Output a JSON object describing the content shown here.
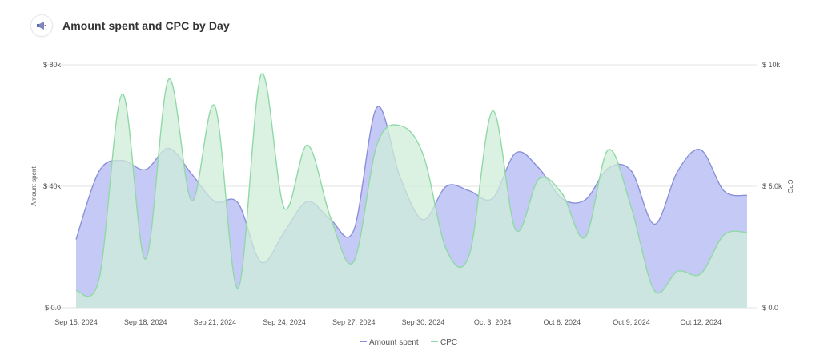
{
  "header": {
    "title": "Amount spent and CPC by Day",
    "icon": "megaphone-icon"
  },
  "chart_data": {
    "type": "area",
    "x": [
      "Sep 15, 2024",
      "Sep 16, 2024",
      "Sep 17, 2024",
      "Sep 18, 2024",
      "Sep 19, 2024",
      "Sep 20, 2024",
      "Sep 21, 2024",
      "Sep 22, 2024",
      "Sep 23, 2024",
      "Sep 24, 2024",
      "Sep 25, 2024",
      "Sep 26, 2024",
      "Sep 27, 2024",
      "Sep 28, 2024",
      "Sep 29, 2024",
      "Sep 30, 2024",
      "Oct 1, 2024",
      "Oct 2, 2024",
      "Oct 3, 2024",
      "Oct 4, 2024",
      "Oct 5, 2024",
      "Oct 6, 2024",
      "Oct 7, 2024",
      "Oct 8, 2024",
      "Oct 9, 2024",
      "Oct 10, 2024",
      "Oct 11, 2024",
      "Oct 12, 2024",
      "Oct 13, 2024",
      "Oct 14, 2024"
    ],
    "x_tick_labels": [
      "Sep 15, 2024",
      "Sep 18, 2024",
      "Sep 21, 2024",
      "Sep 24, 2024",
      "Sep 27, 2024",
      "Sep 30, 2024",
      "Oct 3, 2024",
      "Oct 6, 2024",
      "Oct 9, 2024",
      "Oct 12, 2024"
    ],
    "series": [
      {
        "name": "Amount spent",
        "axis": "left",
        "color": "#8b91d9",
        "fill": "#c5c9f5",
        "values": [
          22500,
          45000,
          48500,
          45500,
          52500,
          44000,
          35000,
          34500,
          15000,
          25000,
          35000,
          29000,
          25500,
          66000,
          43000,
          29000,
          40000,
          38500,
          36000,
          51000,
          46000,
          36000,
          35500,
          46000,
          45000,
          27500,
          45000,
          52000,
          38500,
          37000
        ]
      },
      {
        "name": "CPC",
        "axis": "right",
        "color": "#8fd9a6",
        "fill": "#cfeed8",
        "values": [
          700,
          1200,
          8800,
          2000,
          9400,
          4400,
          8300,
          800,
          9600,
          4100,
          6700,
          3700,
          1900,
          6700,
          7500,
          6300,
          2400,
          2200,
          8100,
          3200,
          5300,
          4700,
          2900,
          6500,
          4100,
          700,
          1500,
          1400,
          3000,
          3100
        ]
      }
    ],
    "y_left": {
      "label": "Amount spent",
      "range": [
        0,
        80000
      ],
      "ticks": [
        0,
        40000,
        80000
      ],
      "tick_labels": [
        "$ 0.0",
        "$ 40k",
        "$ 80k"
      ]
    },
    "y_right": {
      "label": "CPC",
      "range": [
        0,
        10000
      ],
      "ticks": [
        0,
        5000,
        10000
      ],
      "tick_labels": [
        "$ 0.0",
        "$ 5.0k",
        "$ 10k"
      ]
    },
    "grid": true,
    "legend": {
      "position": "bottom-center",
      "items": [
        "Amount spent",
        "CPC"
      ]
    }
  }
}
